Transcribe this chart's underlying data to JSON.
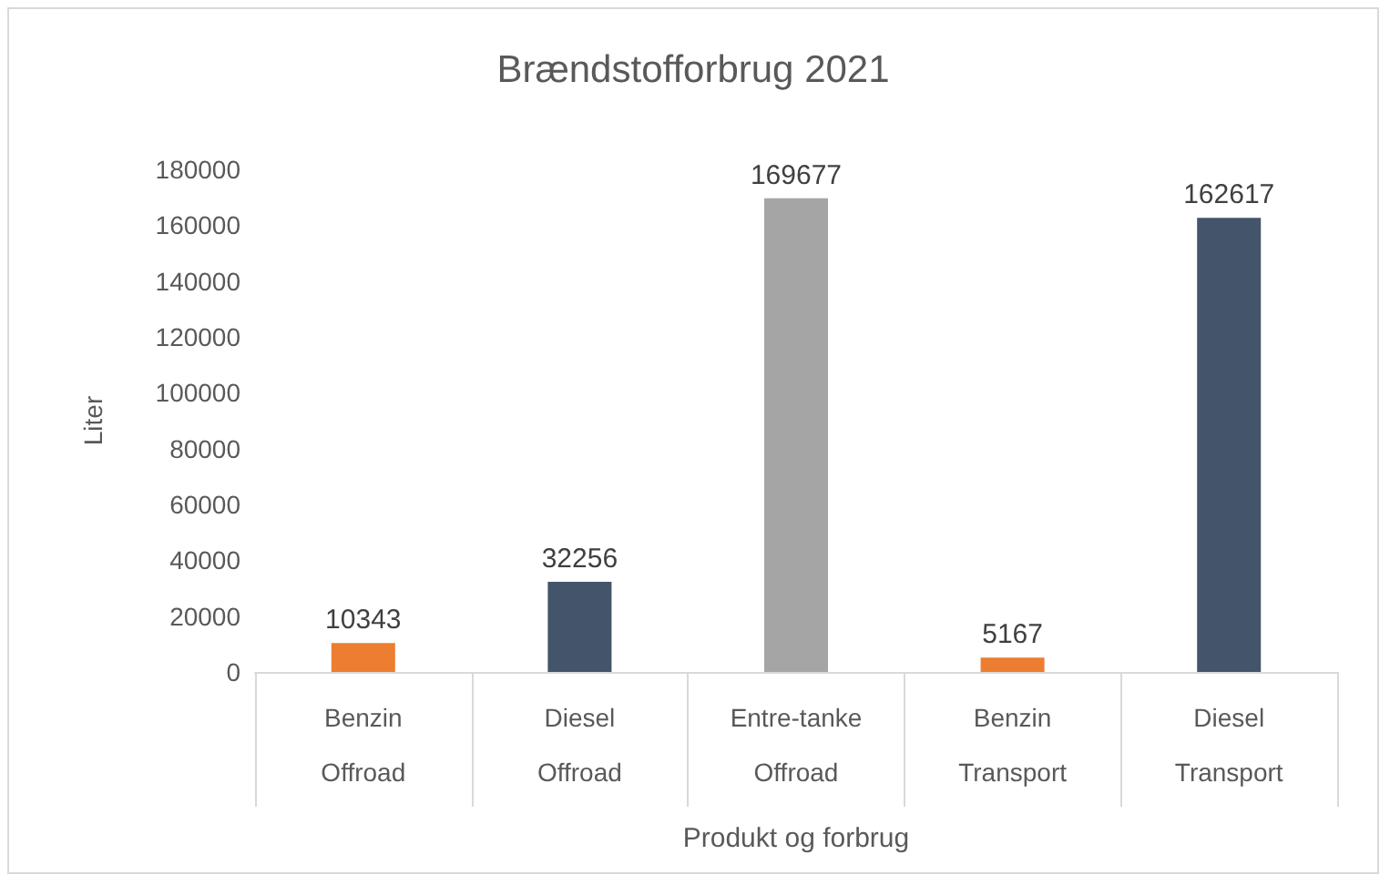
{
  "chart_data": {
    "type": "bar",
    "title": "Brændstofforbrug 2021",
    "xlabel": "Produkt og forbrug",
    "ylabel": "Liter",
    "categories": [
      "Benzin\nOffroad",
      "Diesel\nOffroad",
      "Entre-tanke\nOffroad",
      "Benzin\nTransport",
      "Diesel\nTransport"
    ],
    "values": [
      10343,
      32256,
      169677,
      5167,
      162617
    ],
    "colors": [
      "#ed7d31",
      "#44546a",
      "#a5a5a5",
      "#ed7d31",
      "#44546a"
    ],
    "ylim": [
      0,
      180000
    ],
    "yticks": [
      0,
      20000,
      40000,
      60000,
      80000,
      100000,
      120000,
      140000,
      160000,
      180000
    ],
    "data_labels": true
  }
}
